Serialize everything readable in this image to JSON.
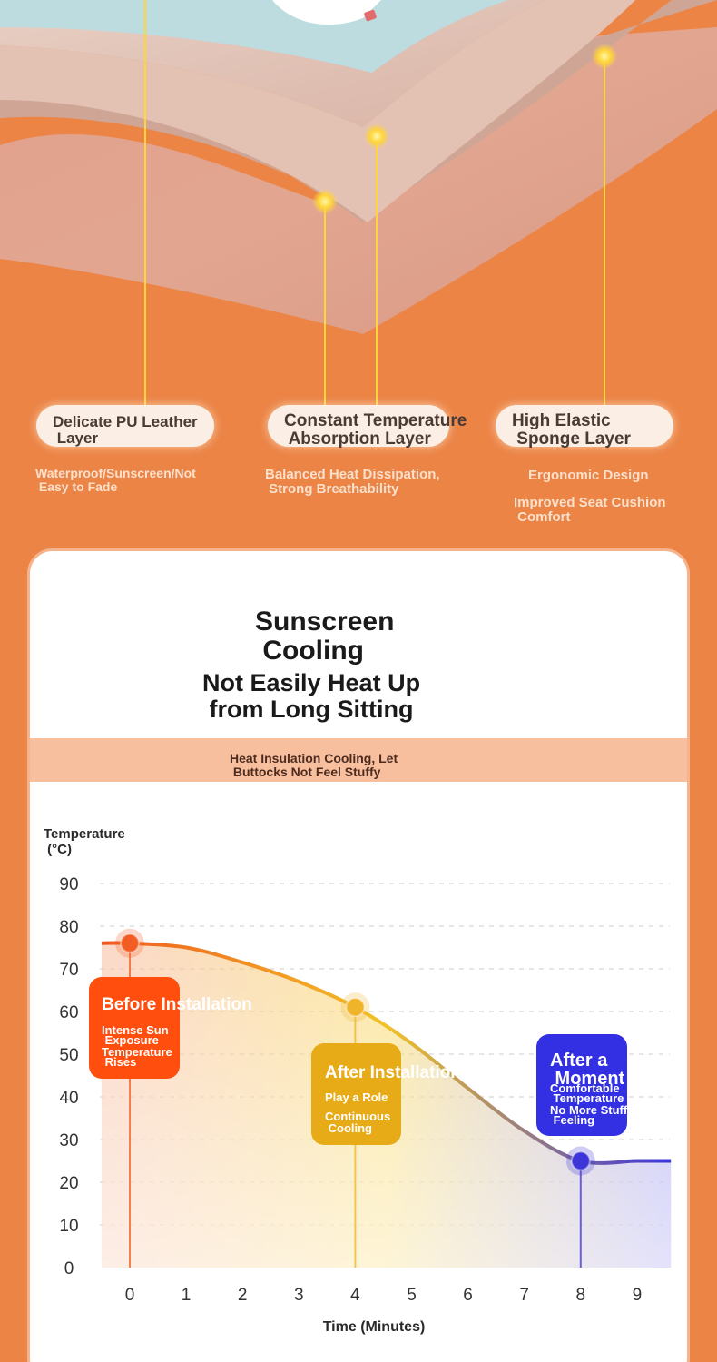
{
  "layers": {
    "items": [
      {
        "title": "Delicate PU Leather\n Layer",
        "desc": "Waterproof/Sunscreen/Not\n Easy to Fade"
      },
      {
        "title": "Constant Temperature\n Absorption Layer",
        "desc": "Balanced Heat Dissipation,\n Strong Breathability"
      },
      {
        "title": "High Elastic\n Sponge Layer",
        "desc": "Ergonomic Design",
        "desc2": "Improved Seat Cushion\n Comfort"
      }
    ],
    "colors": {
      "orange_bg": "#ec8446",
      "callout_bg": "#fbeee4",
      "leader_line": "#ffd53a"
    }
  },
  "card": {
    "title": "Sunscreen\n Cooling",
    "subtitle": "Not Easily Heat Up\n from Long Sitting",
    "band": "Heat Insulation Cooling, Let\n Buttocks Not Feel Stuffy"
  },
  "chart_data": {
    "type": "line",
    "title": "",
    "xlabel": "Time (Minutes)",
    "ylabel": "Temperature\n (°C)",
    "x_ticks": [
      "0",
      "1",
      "2",
      "3",
      "4",
      "5",
      "6",
      "7",
      "8",
      "9"
    ],
    "y_ticks": [
      "0",
      "10",
      "20",
      "30",
      "40",
      "50",
      "60",
      "70",
      "80",
      "90"
    ],
    "xlim": [
      0,
      9.6
    ],
    "ylim": [
      0,
      90
    ],
    "grid": "horizontal dashed",
    "series": [
      {
        "x": [
          -0.5,
          0,
          1,
          2,
          3,
          4,
          5,
          6,
          7,
          8,
          9,
          9.6
        ],
        "values": [
          76,
          76,
          75,
          71.5,
          67,
          61,
          52.5,
          42,
          32,
          25,
          25,
          25
        ],
        "color_start": "#ef5a1e",
        "color_mid": "#f2c228",
        "color_end": "#3b35dc"
      }
    ],
    "markers": [
      {
        "x": 0,
        "y": 76,
        "color": "#f25d23",
        "label": {
          "title": "Before Installation",
          "lines": [
            "Intense Sun",
            " Exposure",
            "Temperature",
            " Rises"
          ],
          "color": "#ff4e0e"
        }
      },
      {
        "x": 4,
        "y": 61,
        "color": "#f0b42a",
        "label": {
          "title": "After Installation",
          "lines": [
            "Play a Role",
            "Continuous",
            " Cooling"
          ],
          "color": "#e7ab17"
        }
      },
      {
        "x": 8,
        "y": 25,
        "color": "#3c35d8",
        "label": {
          "title": "After a\n Moment",
          "lines": [
            "Comfortable",
            " Temperature",
            "No More Stuffy",
            " Feeling"
          ],
          "color": "#3230e2"
        }
      }
    ]
  }
}
